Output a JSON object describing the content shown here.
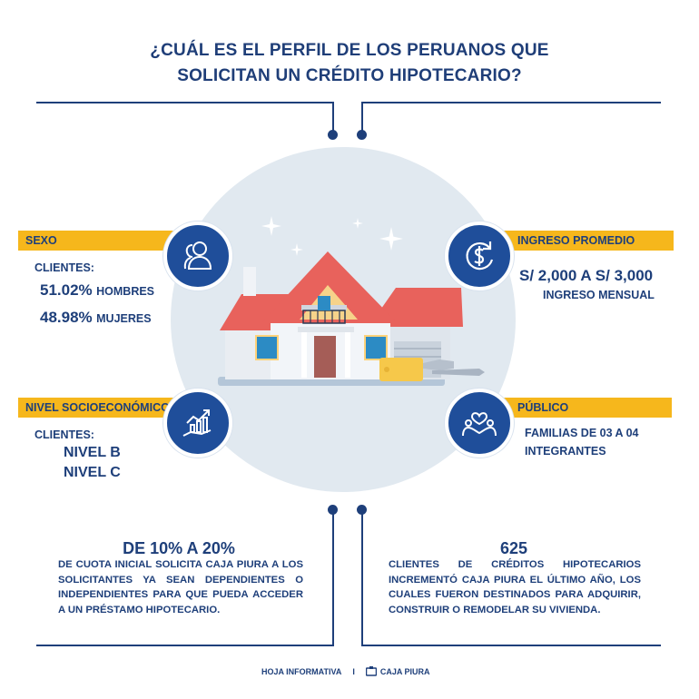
{
  "title": {
    "line1": "¿CUÁL ES EL PERFIL DE LOS PERUANOS QUE",
    "line2": "SOLICITAN UN CRÉDITO HIPOTECARIO?"
  },
  "sexo": {
    "label": "SEXO",
    "clientes": "CLIENTES:",
    "hombres_value": "51.02%",
    "hombres_label": "HOMBRES",
    "mujeres_value": "48.98%",
    "mujeres_label": "MUJERES"
  },
  "ingreso": {
    "label": "INGRESO PROMEDIO",
    "value": "S/ 2,000 A S/ 3,000",
    "sub": "INGRESO MENSUAL"
  },
  "nivel": {
    "label": "NIVEL SOCIOECONÓMICO",
    "clientes": "CLIENTES:",
    "b": "NIVEL B",
    "c": "NIVEL C"
  },
  "publico": {
    "label": "PÚBLICO",
    "line1": "FAMILIAS DE 03 A 04",
    "line2": "INTEGRANTES"
  },
  "cuota": {
    "headline": "DE 10% A 20%",
    "l1": "DE CUOTA INICIAL SOLICITA CAJA PIURA A LOS",
    "l2": "SOLICITANTES YA SEAN DEPENDIENTES O",
    "l3": "INDEPENDIENTES PARA QUE PUEDA ACCEDER",
    "l4": "A UN PRÉSTAMO HIPOTECARIO."
  },
  "creditos": {
    "headline": "625",
    "l1": "CLIENTES DE CRÉDITOS HIPOTECARIOS",
    "l2": "INCREMENTÓ CAJA PIURA EL ÚLTIMO AÑO, LOS",
    "l3": "CUALES FUERON DESTINADOS PARA ADQUIRIR,",
    "l4": "CONSTRUIR O REMODELAR SU VIVIENDA."
  },
  "footer": {
    "left": "HOJA INFORMATIVA",
    "sep": "I",
    "brand": "CAJA PIURA"
  },
  "icons": [
    "users-icon",
    "dollar-refresh-icon",
    "growth-chart-hand-icon",
    "family-heart-icon",
    "house-illustration",
    "sparkle-icon",
    "key-icon",
    "caja-piura-logo"
  ],
  "colors": {
    "navy": "#1e3f7a",
    "yellow": "#f6b71c",
    "circle_bg": "#e1e9f0",
    "icon_blue": "#1f4e9a",
    "roof": "#e8625c"
  }
}
